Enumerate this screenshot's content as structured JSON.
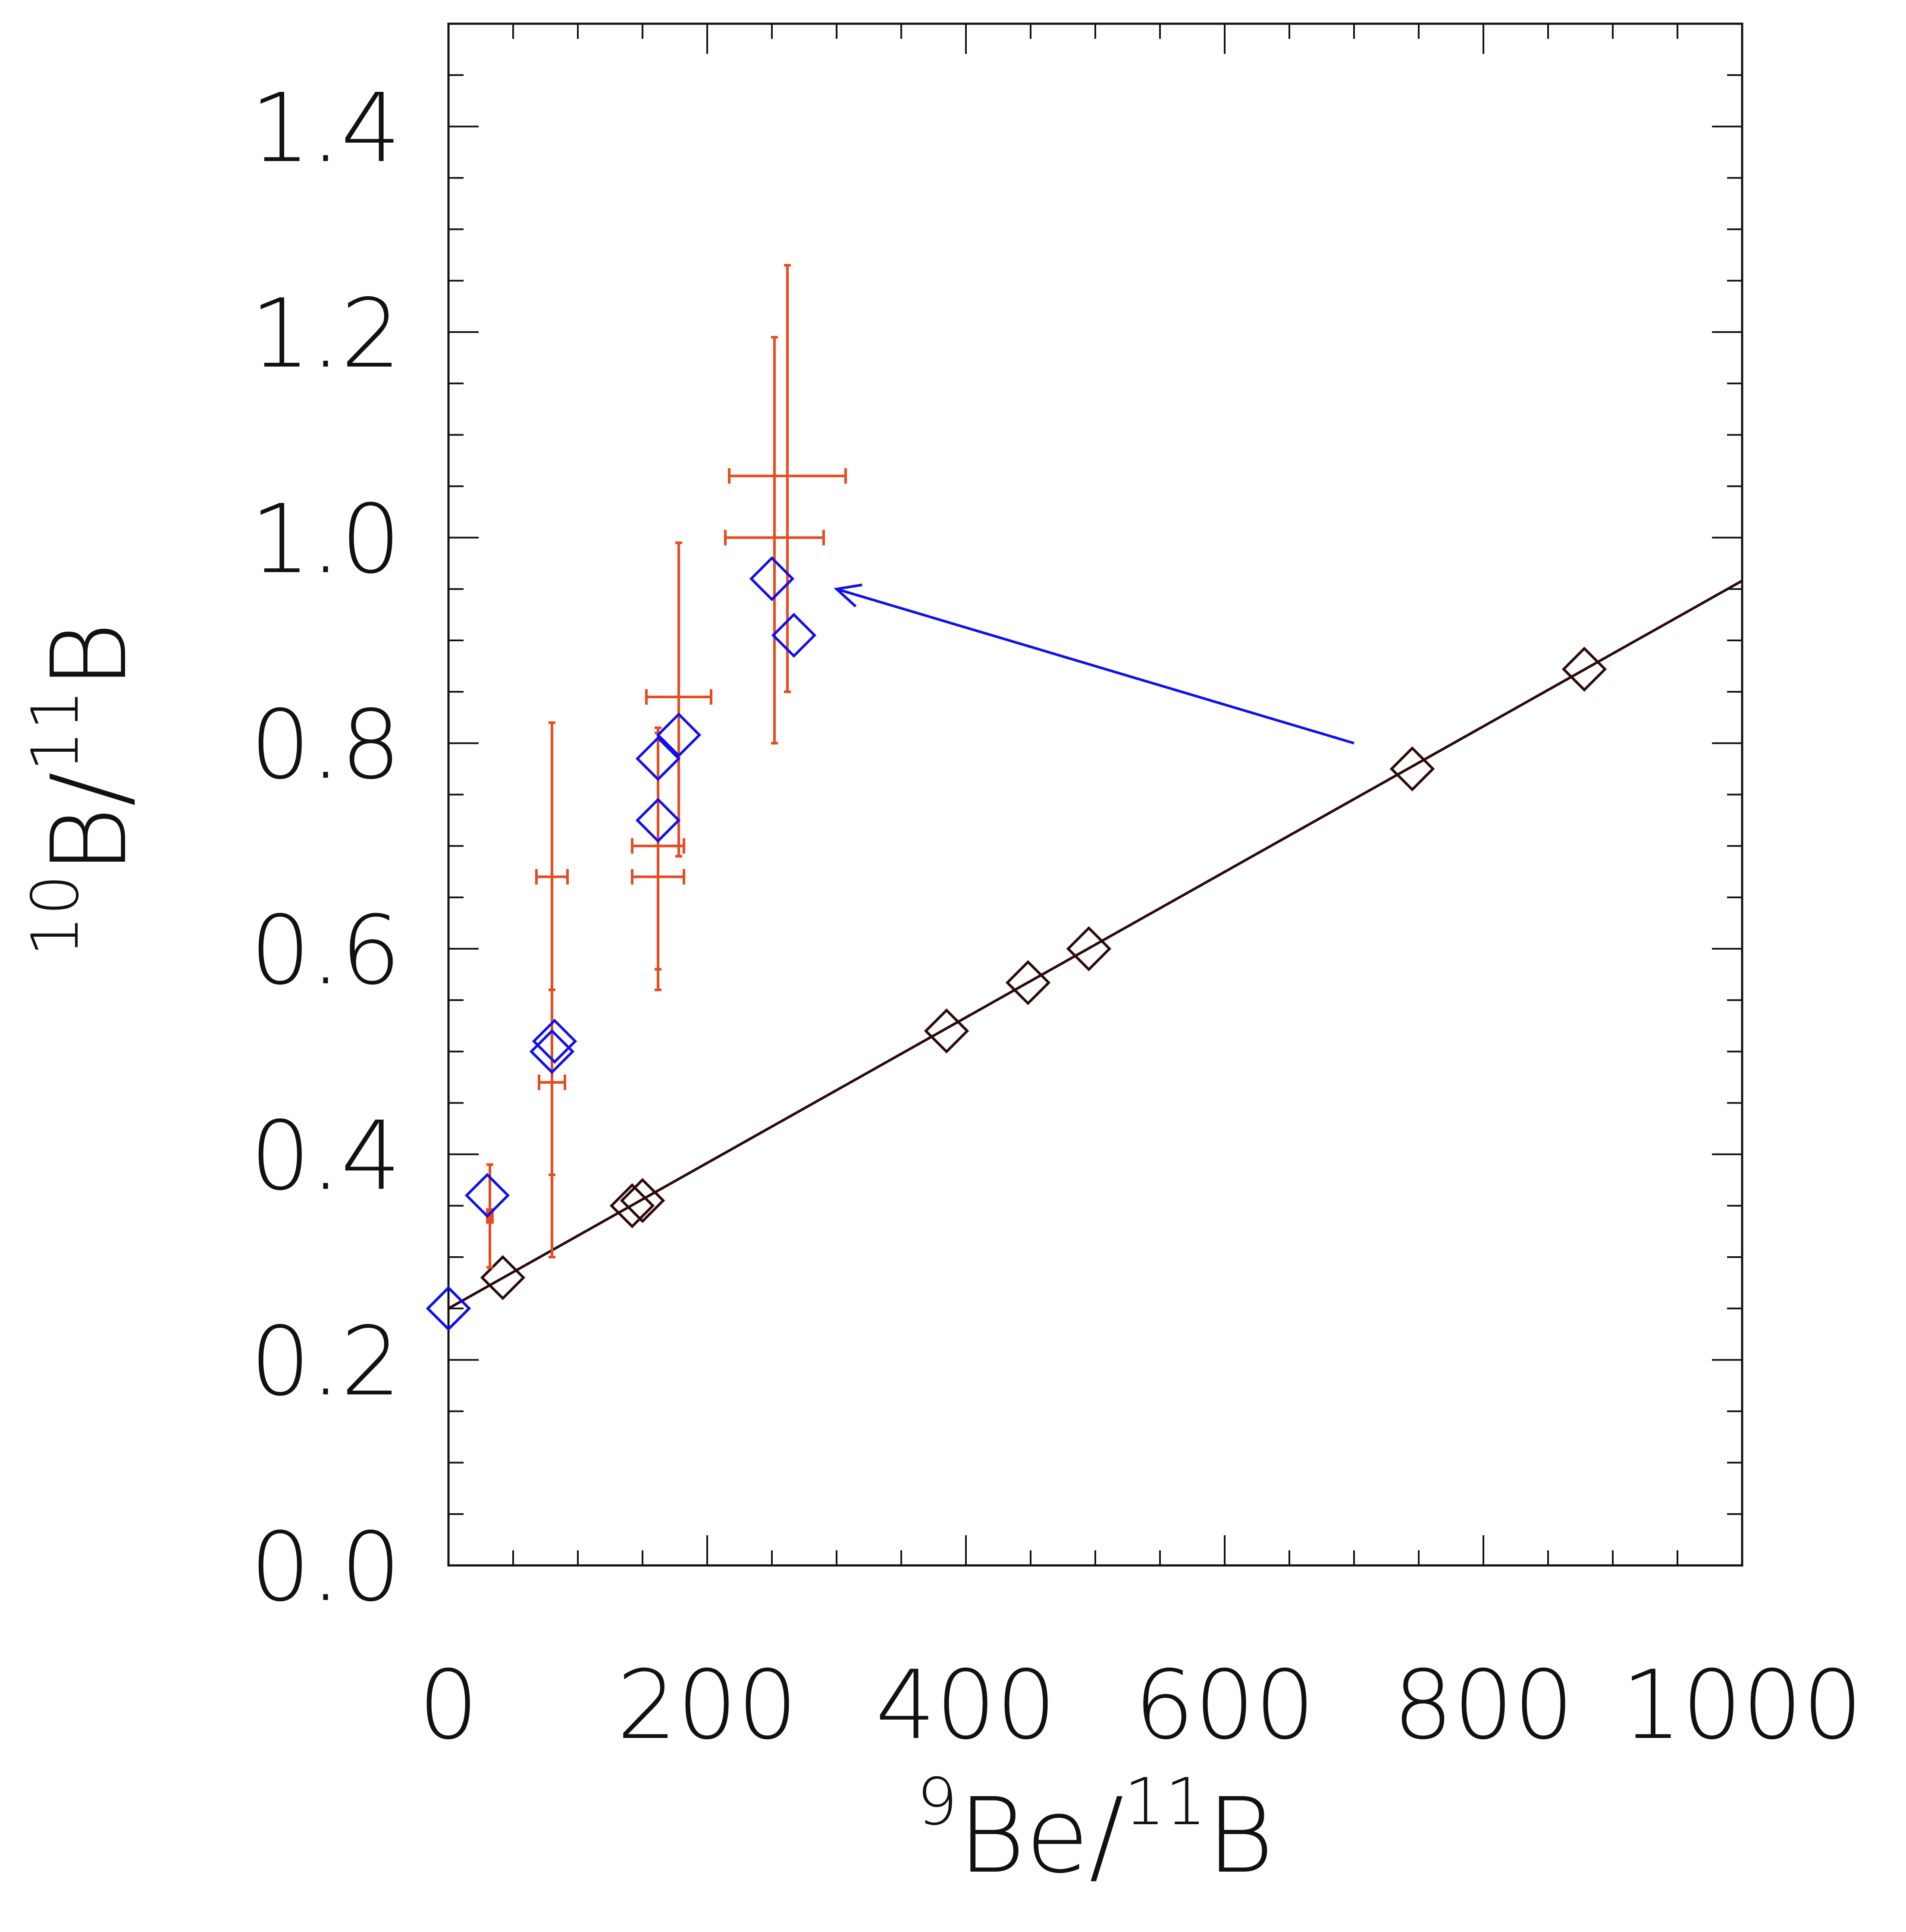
{
  "chart_data": {
    "type": "scatter",
    "title": "",
    "xlabel": {
      "sup1": "9",
      "base1": "Be/",
      "sup2": "11",
      "base2": "B"
    },
    "ylabel": {
      "sup1": "10",
      "base1": "B/",
      "sup2": "11",
      "base2": "B"
    },
    "xlim": [
      0,
      1000
    ],
    "ylim": [
      0,
      1.5
    ],
    "x_ticks": [
      0,
      200,
      400,
      600,
      800,
      1000
    ],
    "x_tick_labels": [
      "0",
      "200",
      "400",
      "600",
      "800",
      "1000"
    ],
    "y_ticks": [
      0.0,
      0.2,
      0.4,
      0.6,
      0.8,
      1.0,
      1.2,
      1.4
    ],
    "y_tick_labels": [
      "0.0",
      "0.2",
      "0.4",
      "0.6",
      "0.8",
      "1.0",
      "1.2",
      "1.4"
    ],
    "x_minor_step": 50,
    "y_minor_step": 0.05,
    "grid": false,
    "colors": {
      "model": "#2a0a0a",
      "measurements": "#e84a1e",
      "corrected": "#1010ee",
      "arrow": "#1010ee"
    },
    "series": [
      {
        "type": "line",
        "x": [
          0,
          1000
        ],
        "y": [
          0.25,
          0.958
        ]
      },
      {
        "type": "scatter",
        "marker": "diamond-open",
        "x": [
          0,
          42,
          142,
          150,
          385,
          448,
          495,
          745,
          878
        ],
        "y": [
          0.25,
          0.28,
          0.35,
          0.355,
          0.52,
          0.567,
          0.6,
          0.775,
          0.872
        ]
      },
      {
        "type": "errorbar",
        "points": [
          {
            "x": 32,
            "y": 0.34,
            "xerr": 2,
            "yerr": [
              0.05,
              0.05
            ]
          },
          {
            "x": 80,
            "y": 0.67,
            "xerr": 12,
            "yerr": [
              0.37,
              0.15
            ]
          },
          {
            "x": 80,
            "y": 0.47,
            "xerr": 10,
            "yerr": [
              0.09,
              0.09
            ]
          },
          {
            "x": 162,
            "y": 0.67,
            "xerr": 20,
            "yerr": [
              0.11,
              0.145
            ]
          },
          {
            "x": 162,
            "y": 0.7,
            "xerr": 20,
            "yerr": [
              0.12,
              0.11
            ]
          },
          {
            "x": 178,
            "y": 0.845,
            "xerr": 25,
            "yerr": [
              0.155,
              0.15
            ]
          },
          {
            "x": 252,
            "y": 1.0,
            "xerr": 38,
            "yerr": [
              0.2,
              0.195
            ]
          },
          {
            "x": 262,
            "y": 1.06,
            "xerr": 45,
            "yerr": [
              0.21,
              0.205
            ]
          }
        ]
      },
      {
        "type": "scatter",
        "marker": "diamond-open",
        "x": [
          0,
          30,
          80,
          82,
          162,
          162,
          178,
          250,
          267
        ],
        "y": [
          0.25,
          0.36,
          0.5,
          0.51,
          0.725,
          0.785,
          0.808,
          0.96,
          0.905
        ]
      }
    ],
    "annotations": [
      {
        "type": "arrow",
        "from": [
          700,
          0.8
        ],
        "to": [
          300,
          0.95
        ]
      }
    ]
  }
}
